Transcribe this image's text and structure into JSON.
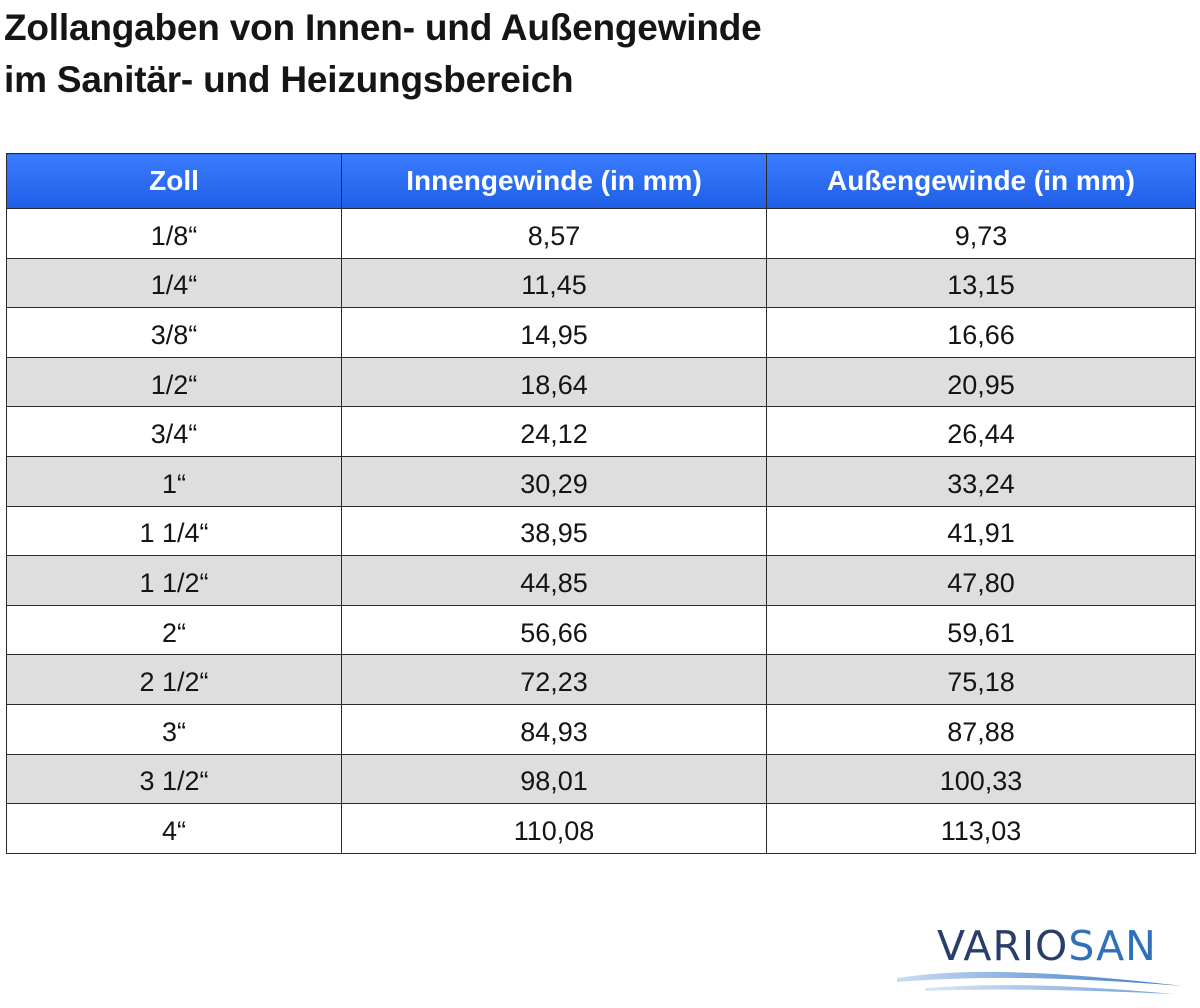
{
  "title": {
    "line1": "Zollangaben von Innen- und Außengewinde",
    "line2": "im Sanitär- und Heizungsbereich"
  },
  "table": {
    "headers": [
      "Zoll",
      "Innengewinde (in mm)",
      "Außengewinde (in mm)"
    ],
    "rows": [
      [
        "1/8“",
        "8,57",
        "9,73"
      ],
      [
        "1/4“",
        "11,45",
        "13,15"
      ],
      [
        "3/8“",
        "14,95",
        "16,66"
      ],
      [
        "1/2“",
        "18,64",
        "20,95"
      ],
      [
        "3/4“",
        "24,12",
        "26,44"
      ],
      [
        "1“",
        "30,29",
        "33,24"
      ],
      [
        "1 1/4“",
        "38,95",
        "41,91"
      ],
      [
        "1 1/2“",
        "44,85",
        "47,80"
      ],
      [
        "2“",
        "56,66",
        "59,61"
      ],
      [
        "2 1/2“",
        "72,23",
        "75,18"
      ],
      [
        "3“",
        "84,93",
        "87,88"
      ],
      [
        "3 1/2“",
        "98,01",
        "100,33"
      ],
      [
        "4“",
        "110,08",
        "113,03"
      ]
    ]
  },
  "logo": {
    "part1": "VARIO",
    "part2": "SAN",
    "colors": {
      "dark": "#2a3e6a",
      "light": "#2f70b8",
      "swoosh": "#6f9fd6"
    }
  },
  "colors": {
    "header_bg": "#2a6cf5",
    "header_text": "#ffffff",
    "row_alt_bg": "#dedede",
    "border": "#2a2a2a"
  }
}
